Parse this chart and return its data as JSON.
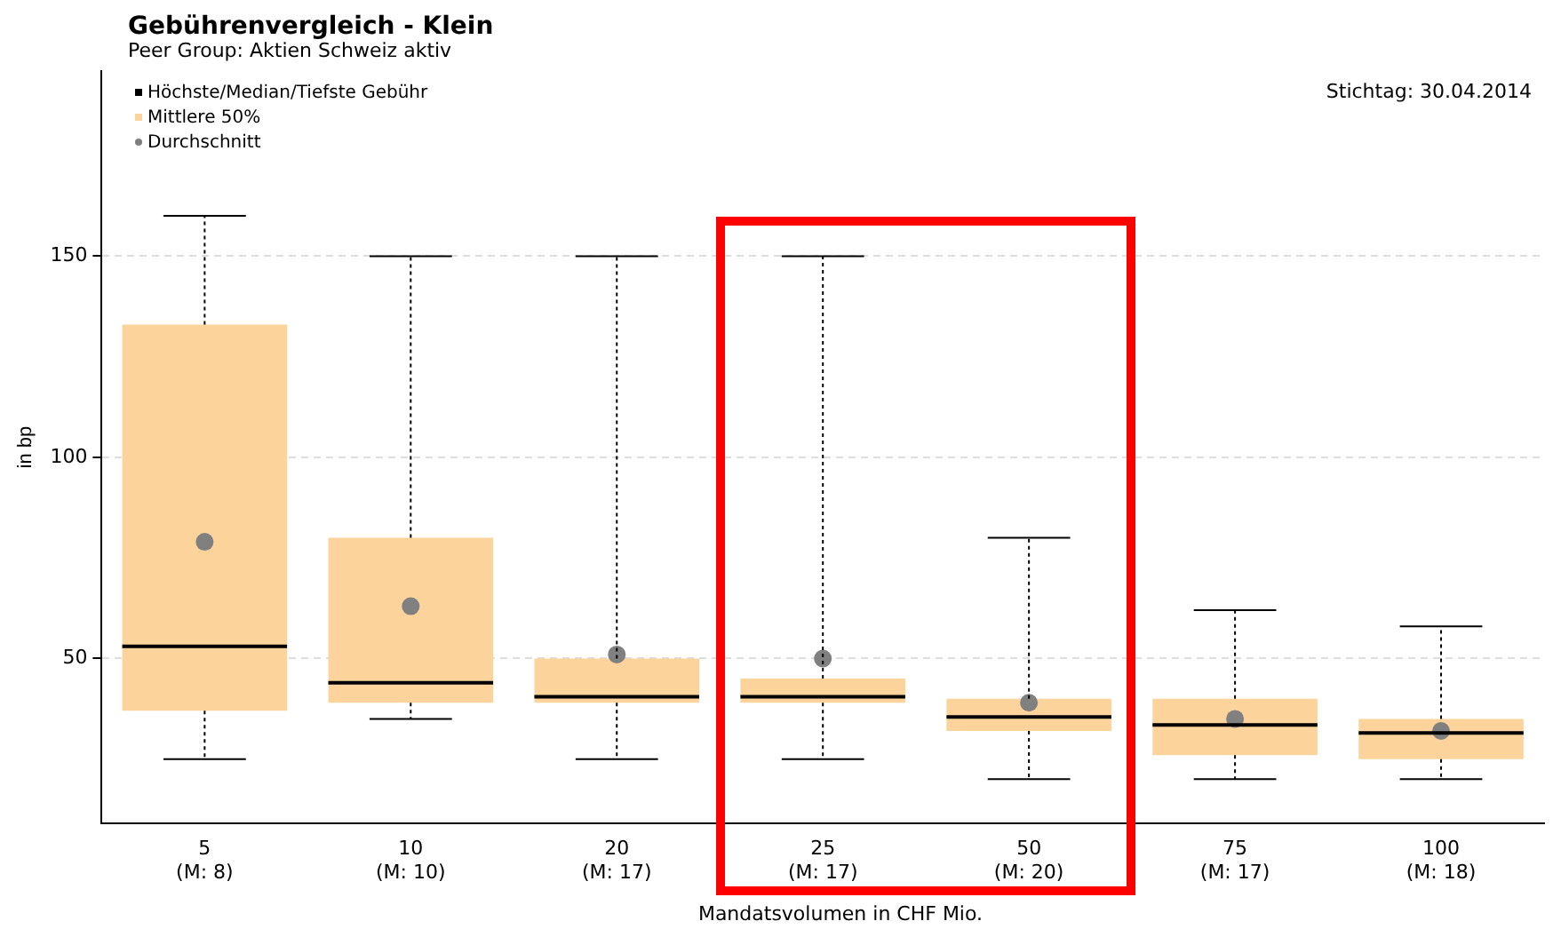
{
  "chart_data": {
    "type": "box",
    "title": "Gebührenvergleich - Klein",
    "subtitle": "Peer Group: Aktien Schweiz aktiv",
    "xlabel": "Mandatsvolumen in CHF Mio.",
    "ylabel": "in bp",
    "categories": [
      "5\n(M: 8)",
      "10\n(M: 10)",
      "20\n(M: 17)",
      "25\n(M: 17)",
      "50\n(M: 20)",
      "75\n(M: 17)",
      "100\n(M: 18)"
    ],
    "boxes": [
      {
        "low": 25,
        "q1": 37,
        "median": 53,
        "q3": 133,
        "high": 160,
        "mean": 79
      },
      {
        "low": 35,
        "q1": 39,
        "median": 44,
        "q3": 80,
        "high": 150,
        "mean": 63
      },
      {
        "low": 25,
        "q1": 39,
        "median": 40.5,
        "q3": 50,
        "high": 150,
        "mean": 51
      },
      {
        "low": 25,
        "q1": 39,
        "median": 40.5,
        "q3": 45,
        "high": 150,
        "mean": 50
      },
      {
        "low": 20,
        "q1": 32,
        "median": 35.5,
        "q3": 40,
        "high": 80,
        "mean": 39
      },
      {
        "low": 20,
        "q1": 26,
        "median": 33.5,
        "q3": 40,
        "high": 62,
        "mean": 35
      },
      {
        "low": 20,
        "q1": 25,
        "median": 31.5,
        "q3": 35,
        "high": 58,
        "mean": 32
      }
    ],
    "color": "#fdd39c",
    "ylim": [
      9,
      196
    ],
    "yticks": [
      50,
      100,
      150
    ],
    "grid": "y",
    "annotations": [
      "Höchste/Median/Tiefste Gebühr",
      "Mittlere 50%",
      "Durchschnitt",
      "Stichtag: 30.04.2014"
    ]
  }
}
